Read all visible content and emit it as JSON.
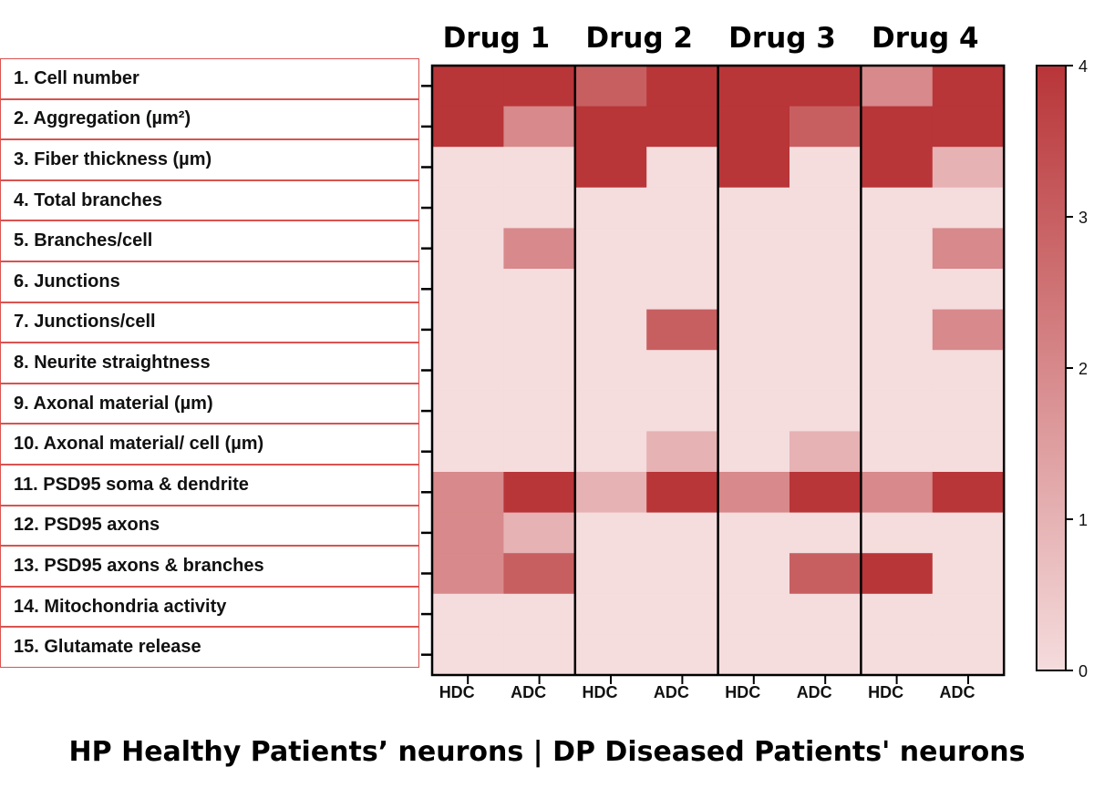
{
  "chart_data": {
    "type": "heatmap",
    "title": "",
    "groups": [
      "Drug 1",
      "Drug 2",
      "Drug 3",
      "Drug 4"
    ],
    "columns": [
      "HDC",
      "ADC",
      "HDC",
      "ADC",
      "HDC",
      "ADC",
      "HDC",
      "ADC"
    ],
    "rows": [
      "1. Cell number",
      "2. Aggregation (µm²)",
      "3. Fiber thickness (µm)",
      "4. Total branches",
      "5. Branches/cell",
      "6. Junctions",
      "7. Junctions/cell",
      "8. Neurite straightness",
      "9. Axonal material (µm)",
      "10. Axonal material/ cell (µm)",
      "11. PSD95 soma & dendrite",
      "12. PSD95 axons",
      "13. PSD95 axons & branches",
      "14. Mitochondria activity",
      "15. Glutamate release"
    ],
    "values": [
      [
        4,
        4,
        3,
        4,
        4,
        4,
        2,
        4
      ],
      [
        4,
        2,
        4,
        4,
        4,
        3,
        4,
        4
      ],
      [
        0,
        0,
        4,
        0,
        4,
        0,
        4,
        1
      ],
      [
        0,
        0,
        0,
        0,
        0,
        0,
        0,
        0
      ],
      [
        0,
        2,
        0,
        0,
        0,
        0,
        0,
        2
      ],
      [
        0,
        0,
        0,
        0,
        0,
        0,
        0,
        0
      ],
      [
        0,
        0,
        0,
        3,
        0,
        0,
        0,
        2
      ],
      [
        0,
        0,
        0,
        0,
        0,
        0,
        0,
        0
      ],
      [
        0,
        0,
        0,
        0,
        0,
        0,
        0,
        0
      ],
      [
        0,
        0,
        0,
        1,
        0,
        1,
        0,
        0
      ],
      [
        2,
        4,
        1,
        4,
        2,
        4,
        2,
        4
      ],
      [
        2,
        1,
        0,
        0,
        0,
        0,
        0,
        0
      ],
      [
        2,
        3,
        0,
        0,
        0,
        3,
        4,
        0
      ],
      [
        0,
        0,
        0,
        0,
        0,
        0,
        0,
        0
      ],
      [
        0,
        0,
        0,
        0,
        0,
        0,
        0,
        0
      ]
    ],
    "colorbar": {
      "min": 0,
      "max": 4,
      "ticks": [
        0,
        1,
        2,
        3,
        4
      ],
      "color_low": "#f5dcdd",
      "color_high": "#b83538"
    }
  },
  "caption": "HP Healthy Patients’ neurons | DP Diseased Patients' neurons"
}
